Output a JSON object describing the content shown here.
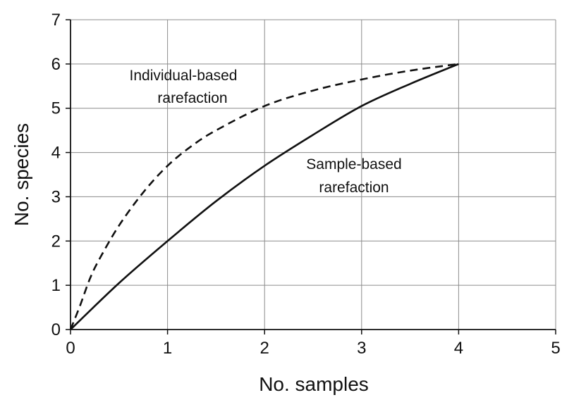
{
  "chart_data": {
    "type": "line",
    "title": "",
    "xlabel": "No. samples",
    "ylabel": "No. species",
    "xlim": [
      0,
      5
    ],
    "ylim": [
      0,
      7
    ],
    "xticks": [
      "0",
      "1",
      "2",
      "3",
      "4",
      "5"
    ],
    "yticks": [
      "0",
      "1",
      "2",
      "3",
      "4",
      "5",
      "6",
      "7"
    ],
    "grid": true,
    "legend": "none",
    "series": [
      {
        "line_style": "dashed",
        "color": "#111111",
        "x": [
          0,
          0.1,
          0.2,
          0.3,
          0.5,
          0.75,
          1.0,
          1.25,
          1.5,
          2.0,
          2.5,
          3.0,
          3.5,
          4.0
        ],
        "y": [
          0,
          0.55,
          1.15,
          1.6,
          2.35,
          3.1,
          3.7,
          4.15,
          4.5,
          5.05,
          5.4,
          5.65,
          5.85,
          6.0
        ]
      },
      {
        "line_style": "solid",
        "color": "#111111",
        "x": [
          0,
          0.5,
          1.0,
          1.5,
          2.0,
          2.5,
          3.0,
          3.5,
          4.0
        ],
        "y": [
          0,
          1.05,
          2.0,
          2.9,
          3.7,
          4.4,
          5.05,
          5.55,
          6.0
        ]
      }
    ],
    "annotations": [
      {
        "lines": [
          "Individual-based",
          "rarefaction"
        ]
      },
      {
        "lines": [
          "Sample-based",
          "rarefaction"
        ]
      }
    ]
  }
}
